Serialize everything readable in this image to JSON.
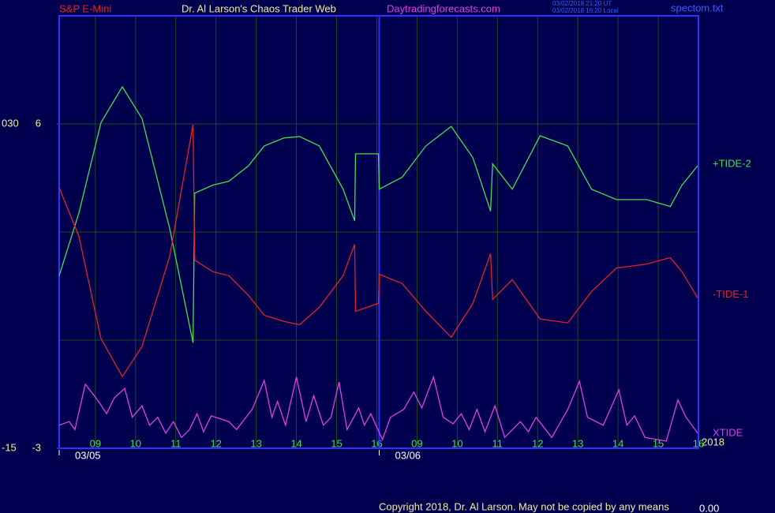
{
  "chart_data": {
    "type": "line",
    "header": {
      "symbol": "S&P E-Mini",
      "title": "Dr. Al Larson's Chaos Trader Web",
      "site": "Daytradingforecasts.com",
      "time_ut": "03/02/2018 21:20 UT",
      "time_local": "03/02/2018 16:20 Local",
      "file": "spectom.txt"
    },
    "copyright": "Copyright 2018, Dr. Al Larson. May not be copied by any means",
    "corner_value": "0.00",
    "year": "2018",
    "dates": [
      {
        "label": "03/05",
        "x": 8.1
      },
      {
        "label": "03/06",
        "x": 16.06
      }
    ],
    "xlim": [
      8.1,
      24
    ],
    "xticks": [
      {
        "value": 9,
        "label": "09"
      },
      10,
      11,
      12,
      13,
      14,
      15,
      16,
      {
        "value": 17,
        "label": "09"
      },
      {
        "value": 18,
        "label": "10"
      },
      {
        "value": 19,
        "label": "11"
      },
      {
        "value": 20,
        "label": "12"
      },
      {
        "value": 21,
        "label": "13"
      },
      {
        "value": 22,
        "label": "14"
      },
      {
        "value": 23,
        "label": "15"
      },
      {
        "value": 24,
        "label": "16"
      }
    ],
    "ylim": [
      -3,
      9
    ],
    "yticks": [
      -3,
      6
    ],
    "grid_lines": [
      0,
      3
    ],
    "y2lim": [
      -15,
      45
    ],
    "y2ticks": [
      -15,
      {
        "value": 30,
        "label": "030"
      }
    ],
    "grid": true,
    "series": [
      {
        "name": "+TIDE-2",
        "color": "#44e044",
        "x": [
          8.1,
          8.59,
          9.14,
          9.67,
          10.16,
          10.85,
          11.43,
          11.47,
          11.92,
          12.32,
          12.81,
          13.2,
          13.69,
          14.08,
          14.57,
          15.16,
          15.45,
          15.47,
          16.04,
          16.06,
          16.63,
          17.22,
          17.85,
          18.39,
          18.83,
          18.88,
          19.37,
          20.06,
          20.75,
          21.34,
          21.96,
          22.71,
          23.3,
          23.59,
          23.98
        ],
        "values": [
          1.79,
          3.53,
          6.04,
          7.03,
          6.15,
          3.09,
          -0.07,
          4.08,
          4.3,
          4.41,
          4.84,
          5.39,
          5.61,
          5.65,
          5.39,
          4.19,
          3.31,
          5.17,
          5.17,
          4.19,
          4.52,
          5.39,
          5.93,
          5.06,
          3.58,
          4.89,
          4.19,
          5.67,
          5.39,
          4.19,
          3.9,
          3.9,
          3.71,
          4.3,
          4.84
        ]
      },
      {
        "name": "-TIDE-1",
        "color": "#e02424",
        "x": [
          8.1,
          8.59,
          9.14,
          9.67,
          10.16,
          10.85,
          11.43,
          11.47,
          11.92,
          12.32,
          12.81,
          13.2,
          13.69,
          14.08,
          14.57,
          15.16,
          15.45,
          15.47,
          16.04,
          16.06,
          16.63,
          17.22,
          17.85,
          18.39,
          18.83,
          18.88,
          19.37,
          20.06,
          20.75,
          21.34,
          21.96,
          22.71,
          23.3,
          23.59,
          23.98
        ],
        "values": [
          4.23,
          2.88,
          0.04,
          -1.01,
          -0.18,
          2.33,
          5.98,
          2.22,
          1.9,
          1.79,
          1.24,
          0.69,
          0.52,
          0.43,
          0.91,
          1.79,
          2.66,
          0.8,
          1.02,
          1.83,
          1.57,
          0.8,
          0.08,
          1.02,
          2.4,
          1.13,
          1.68,
          0.59,
          0.48,
          1.35,
          2.0,
          2.11,
          2.29,
          1.9,
          1.17
        ]
      },
      {
        "name": "XTIDE",
        "color": "#e040e0",
        "axis": "y2",
        "x": [
          8.1,
          8.35,
          8.49,
          8.75,
          9.08,
          9.28,
          9.47,
          9.73,
          9.92,
          10.16,
          10.35,
          10.55,
          10.75,
          10.94,
          11.14,
          11.34,
          11.53,
          11.69,
          11.88,
          12.32,
          12.51,
          12.9,
          13.2,
          13.39,
          13.53,
          13.73,
          14.0,
          14.24,
          14.43,
          14.67,
          14.86,
          15.06,
          15.26,
          15.55,
          15.69,
          15.85,
          16.14,
          16.34,
          16.67,
          16.92,
          17.12,
          17.41,
          17.65,
          17.9,
          18.1,
          18.3,
          18.49,
          18.69,
          18.94,
          19.18,
          19.57,
          19.77,
          19.96,
          20.35,
          20.75,
          21.04,
          21.24,
          21.63,
          22.02,
          22.22,
          22.41,
          22.67,
          23.2,
          23.49,
          23.69,
          23.98
        ],
        "values": [
          -11.8,
          -11.3,
          -12.4,
          -6.1,
          -8.5,
          -10.2,
          -8.0,
          -6.7,
          -10.7,
          -9.1,
          -11.8,
          -10.7,
          -12.9,
          -11.3,
          -13.5,
          -12.4,
          -10.2,
          -12.7,
          -10.5,
          -11.3,
          -12.4,
          -9.6,
          -5.6,
          -10.7,
          -8.5,
          -11.8,
          -5.1,
          -11.3,
          -7.7,
          -11.8,
          -10.7,
          -5.8,
          -12.4,
          -9.4,
          -11.8,
          -10.2,
          -13.8,
          -10.7,
          -9.6,
          -7.2,
          -9.4,
          -5.1,
          -10.7,
          -11.6,
          -10.2,
          -12.4,
          -9.6,
          -12.7,
          -9.1,
          -13.5,
          -11.3,
          -12.7,
          -10.7,
          -13.5,
          -9.6,
          -5.7,
          -10.7,
          -11.8,
          -6.9,
          -11.8,
          -10.5,
          -13.5,
          -14.0,
          -8.3,
          -10.7,
          -12.9
        ]
      }
    ]
  }
}
